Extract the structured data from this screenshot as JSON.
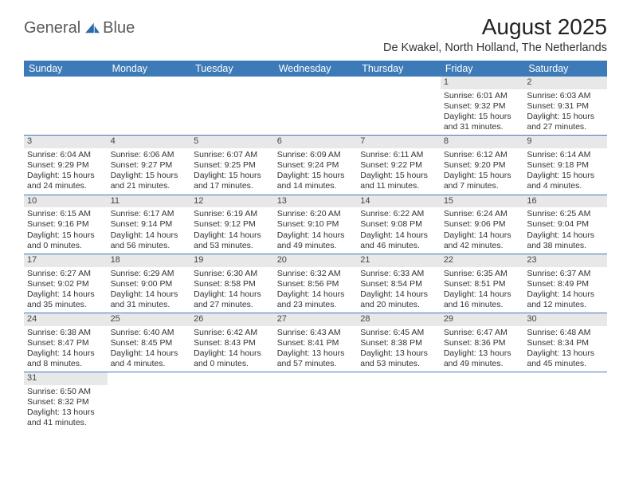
{
  "logo": {
    "left": "General",
    "right": "Blue"
  },
  "title": "August 2025",
  "location": "De Kwakel, North Holland, The Netherlands",
  "weekday_headers": [
    "Sunday",
    "Monday",
    "Tuesday",
    "Wednesday",
    "Thursday",
    "Friday",
    "Saturday"
  ],
  "colors": {
    "header_bg": "#3d7ab8",
    "header_fg": "#ffffff",
    "day_bar_bg": "#e8e8e8",
    "row_border": "#3d7ab8",
    "text": "#333333"
  },
  "typography": {
    "title_fontsize": 28,
    "subtitle_fontsize": 14.5,
    "header_fontsize": 12.5,
    "cell_fontsize": 10.5
  },
  "labels": {
    "sunrise": "Sunrise:",
    "sunset": "Sunset:",
    "daylight": "Daylight:"
  },
  "weeks": [
    [
      null,
      null,
      null,
      null,
      null,
      {
        "day": "1",
        "sunrise": "6:01 AM",
        "sunset": "9:32 PM",
        "daylight": "15 hours and 31 minutes."
      },
      {
        "day": "2",
        "sunrise": "6:03 AM",
        "sunset": "9:31 PM",
        "daylight": "15 hours and 27 minutes."
      }
    ],
    [
      {
        "day": "3",
        "sunrise": "6:04 AM",
        "sunset": "9:29 PM",
        "daylight": "15 hours and 24 minutes."
      },
      {
        "day": "4",
        "sunrise": "6:06 AM",
        "sunset": "9:27 PM",
        "daylight": "15 hours and 21 minutes."
      },
      {
        "day": "5",
        "sunrise": "6:07 AM",
        "sunset": "9:25 PM",
        "daylight": "15 hours and 17 minutes."
      },
      {
        "day": "6",
        "sunrise": "6:09 AM",
        "sunset": "9:24 PM",
        "daylight": "15 hours and 14 minutes."
      },
      {
        "day": "7",
        "sunrise": "6:11 AM",
        "sunset": "9:22 PM",
        "daylight": "15 hours and 11 minutes."
      },
      {
        "day": "8",
        "sunrise": "6:12 AM",
        "sunset": "9:20 PM",
        "daylight": "15 hours and 7 minutes."
      },
      {
        "day": "9",
        "sunrise": "6:14 AM",
        "sunset": "9:18 PM",
        "daylight": "15 hours and 4 minutes."
      }
    ],
    [
      {
        "day": "10",
        "sunrise": "6:15 AM",
        "sunset": "9:16 PM",
        "daylight": "15 hours and 0 minutes."
      },
      {
        "day": "11",
        "sunrise": "6:17 AM",
        "sunset": "9:14 PM",
        "daylight": "14 hours and 56 minutes."
      },
      {
        "day": "12",
        "sunrise": "6:19 AM",
        "sunset": "9:12 PM",
        "daylight": "14 hours and 53 minutes."
      },
      {
        "day": "13",
        "sunrise": "6:20 AM",
        "sunset": "9:10 PM",
        "daylight": "14 hours and 49 minutes."
      },
      {
        "day": "14",
        "sunrise": "6:22 AM",
        "sunset": "9:08 PM",
        "daylight": "14 hours and 46 minutes."
      },
      {
        "day": "15",
        "sunrise": "6:24 AM",
        "sunset": "9:06 PM",
        "daylight": "14 hours and 42 minutes."
      },
      {
        "day": "16",
        "sunrise": "6:25 AM",
        "sunset": "9:04 PM",
        "daylight": "14 hours and 38 minutes."
      }
    ],
    [
      {
        "day": "17",
        "sunrise": "6:27 AM",
        "sunset": "9:02 PM",
        "daylight": "14 hours and 35 minutes."
      },
      {
        "day": "18",
        "sunrise": "6:29 AM",
        "sunset": "9:00 PM",
        "daylight": "14 hours and 31 minutes."
      },
      {
        "day": "19",
        "sunrise": "6:30 AM",
        "sunset": "8:58 PM",
        "daylight": "14 hours and 27 minutes."
      },
      {
        "day": "20",
        "sunrise": "6:32 AM",
        "sunset": "8:56 PM",
        "daylight": "14 hours and 23 minutes."
      },
      {
        "day": "21",
        "sunrise": "6:33 AM",
        "sunset": "8:54 PM",
        "daylight": "14 hours and 20 minutes."
      },
      {
        "day": "22",
        "sunrise": "6:35 AM",
        "sunset": "8:51 PM",
        "daylight": "14 hours and 16 minutes."
      },
      {
        "day": "23",
        "sunrise": "6:37 AM",
        "sunset": "8:49 PM",
        "daylight": "14 hours and 12 minutes."
      }
    ],
    [
      {
        "day": "24",
        "sunrise": "6:38 AM",
        "sunset": "8:47 PM",
        "daylight": "14 hours and 8 minutes."
      },
      {
        "day": "25",
        "sunrise": "6:40 AM",
        "sunset": "8:45 PM",
        "daylight": "14 hours and 4 minutes."
      },
      {
        "day": "26",
        "sunrise": "6:42 AM",
        "sunset": "8:43 PM",
        "daylight": "14 hours and 0 minutes."
      },
      {
        "day": "27",
        "sunrise": "6:43 AM",
        "sunset": "8:41 PM",
        "daylight": "13 hours and 57 minutes."
      },
      {
        "day": "28",
        "sunrise": "6:45 AM",
        "sunset": "8:38 PM",
        "daylight": "13 hours and 53 minutes."
      },
      {
        "day": "29",
        "sunrise": "6:47 AM",
        "sunset": "8:36 PM",
        "daylight": "13 hours and 49 minutes."
      },
      {
        "day": "30",
        "sunrise": "6:48 AM",
        "sunset": "8:34 PM",
        "daylight": "13 hours and 45 minutes."
      }
    ],
    [
      {
        "day": "31",
        "sunrise": "6:50 AM",
        "sunset": "8:32 PM",
        "daylight": "13 hours and 41 minutes."
      },
      null,
      null,
      null,
      null,
      null,
      null
    ]
  ]
}
